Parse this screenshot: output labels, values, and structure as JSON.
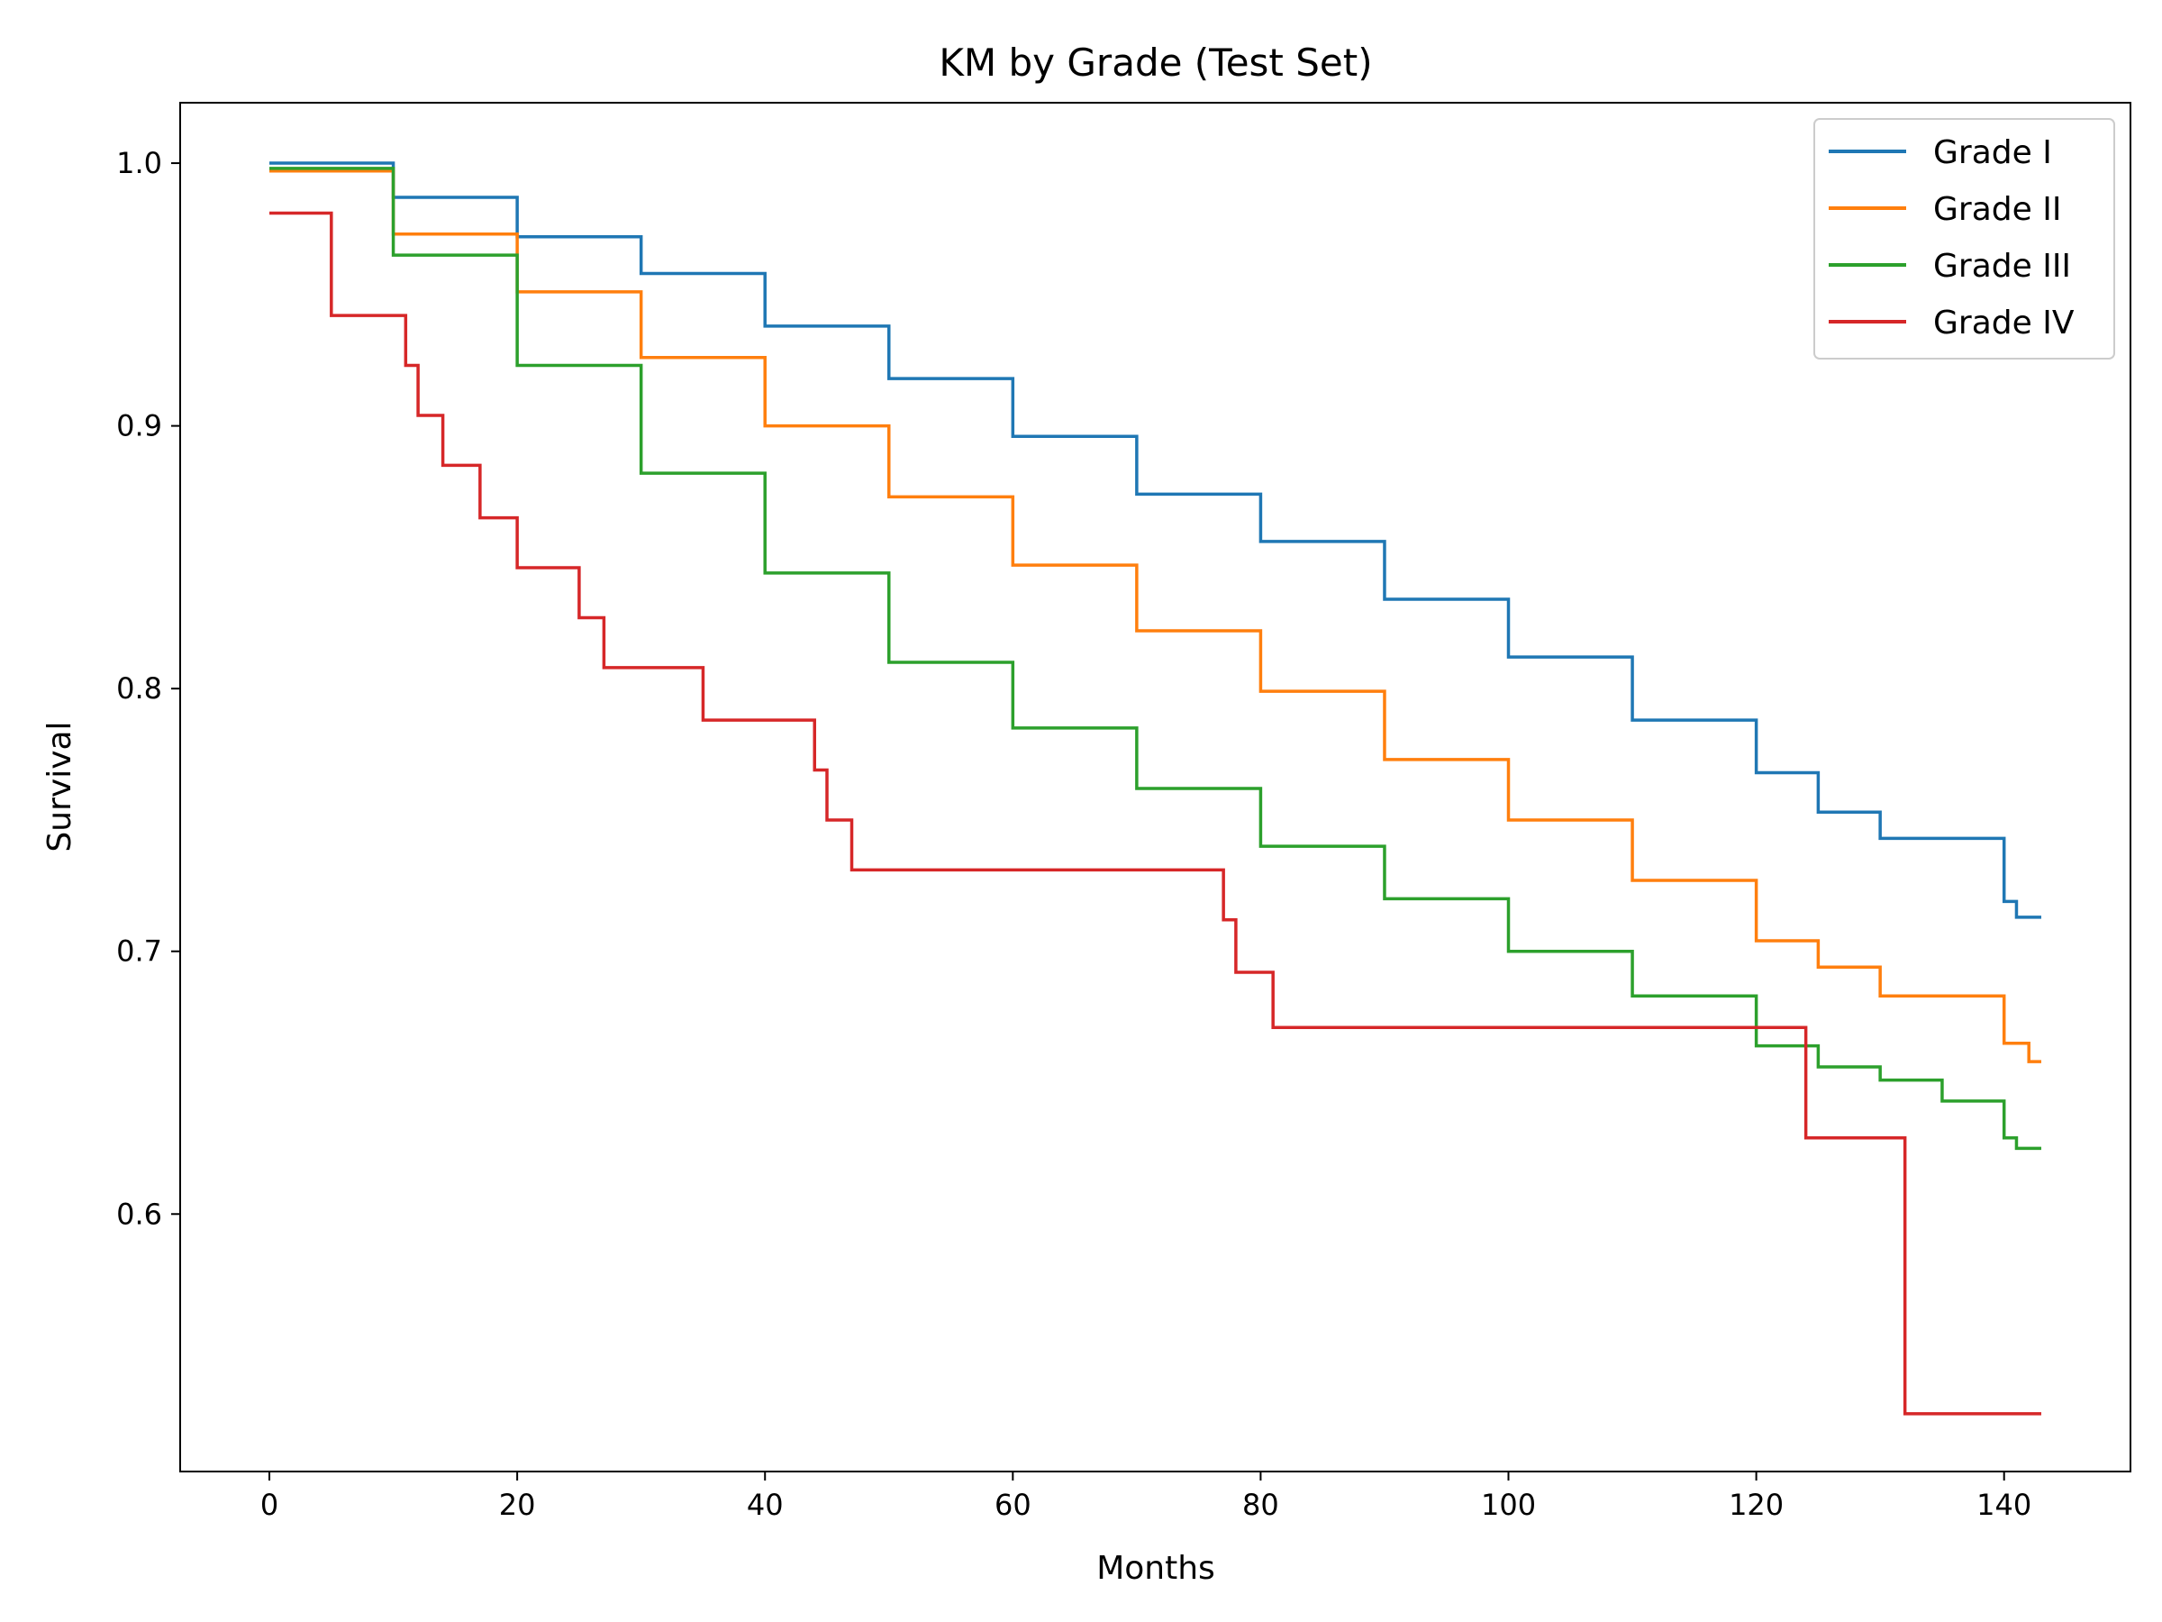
{
  "chart_data": {
    "type": "line",
    "step": true,
    "title": "KM by Grade (Test Set)",
    "xlabel": "Months",
    "ylabel": "Survival",
    "xlim": [
      -7.2,
      150.2
    ],
    "ylim": [
      0.502,
      1.023
    ],
    "xticks": [
      0,
      20,
      40,
      60,
      80,
      100,
      120,
      140
    ],
    "yticks": [
      0.6,
      0.7,
      0.8,
      0.9,
      1.0
    ],
    "ytick_labels": [
      "0.6",
      "0.7",
      "0.8",
      "0.9",
      "1.0"
    ],
    "grid": false,
    "legend_position": "top-right",
    "series": [
      {
        "name": "Grade I",
        "color": "#1f77b4",
        "points": [
          [
            0,
            1.0
          ],
          [
            10,
            0.987
          ],
          [
            20,
            0.972
          ],
          [
            30,
            0.958
          ],
          [
            40,
            0.938
          ],
          [
            50,
            0.918
          ],
          [
            60,
            0.896
          ],
          [
            70,
            0.874
          ],
          [
            80,
            0.856
          ],
          [
            90,
            0.834
          ],
          [
            100,
            0.812
          ],
          [
            110,
            0.788
          ],
          [
            120,
            0.768
          ],
          [
            125,
            0.753
          ],
          [
            130,
            0.743
          ],
          [
            140,
            0.719
          ],
          [
            141,
            0.713
          ],
          [
            143,
            0.713
          ]
        ]
      },
      {
        "name": "Grade II",
        "color": "#ff7f0e",
        "points": [
          [
            0,
            0.997
          ],
          [
            10,
            0.973
          ],
          [
            20,
            0.951
          ],
          [
            30,
            0.926
          ],
          [
            40,
            0.9
          ],
          [
            50,
            0.873
          ],
          [
            60,
            0.847
          ],
          [
            70,
            0.822
          ],
          [
            80,
            0.799
          ],
          [
            90,
            0.773
          ],
          [
            100,
            0.75
          ],
          [
            110,
            0.727
          ],
          [
            120,
            0.704
          ],
          [
            125,
            0.694
          ],
          [
            130,
            0.683
          ],
          [
            140,
            0.665
          ],
          [
            142,
            0.658
          ],
          [
            143,
            0.658
          ]
        ]
      },
      {
        "name": "Grade III",
        "color": "#2ca02c",
        "points": [
          [
            0,
            0.998
          ],
          [
            10,
            0.965
          ],
          [
            20,
            0.923
          ],
          [
            30,
            0.882
          ],
          [
            40,
            0.844
          ],
          [
            50,
            0.81
          ],
          [
            60,
            0.785
          ],
          [
            70,
            0.762
          ],
          [
            80,
            0.74
          ],
          [
            90,
            0.72
          ],
          [
            100,
            0.7
          ],
          [
            110,
            0.683
          ],
          [
            120,
            0.664
          ],
          [
            125,
            0.656
          ],
          [
            130,
            0.651
          ],
          [
            135,
            0.643
          ],
          [
            140,
            0.629
          ],
          [
            141,
            0.625
          ],
          [
            143,
            0.625
          ]
        ]
      },
      {
        "name": "Grade IV",
        "color": "#d62728",
        "points": [
          [
            0,
            0.981
          ],
          [
            5,
            0.942
          ],
          [
            11,
            0.923
          ],
          [
            12,
            0.904
          ],
          [
            14,
            0.885
          ],
          [
            17,
            0.865
          ],
          [
            20,
            0.846
          ],
          [
            25,
            0.827
          ],
          [
            27,
            0.808
          ],
          [
            35,
            0.788
          ],
          [
            44,
            0.769
          ],
          [
            45,
            0.75
          ],
          [
            47,
            0.731
          ],
          [
            77,
            0.712
          ],
          [
            78,
            0.692
          ],
          [
            81,
            0.671
          ],
          [
            124,
            0.629
          ],
          [
            132,
            0.524
          ],
          [
            143,
            0.524
          ]
        ]
      }
    ]
  }
}
